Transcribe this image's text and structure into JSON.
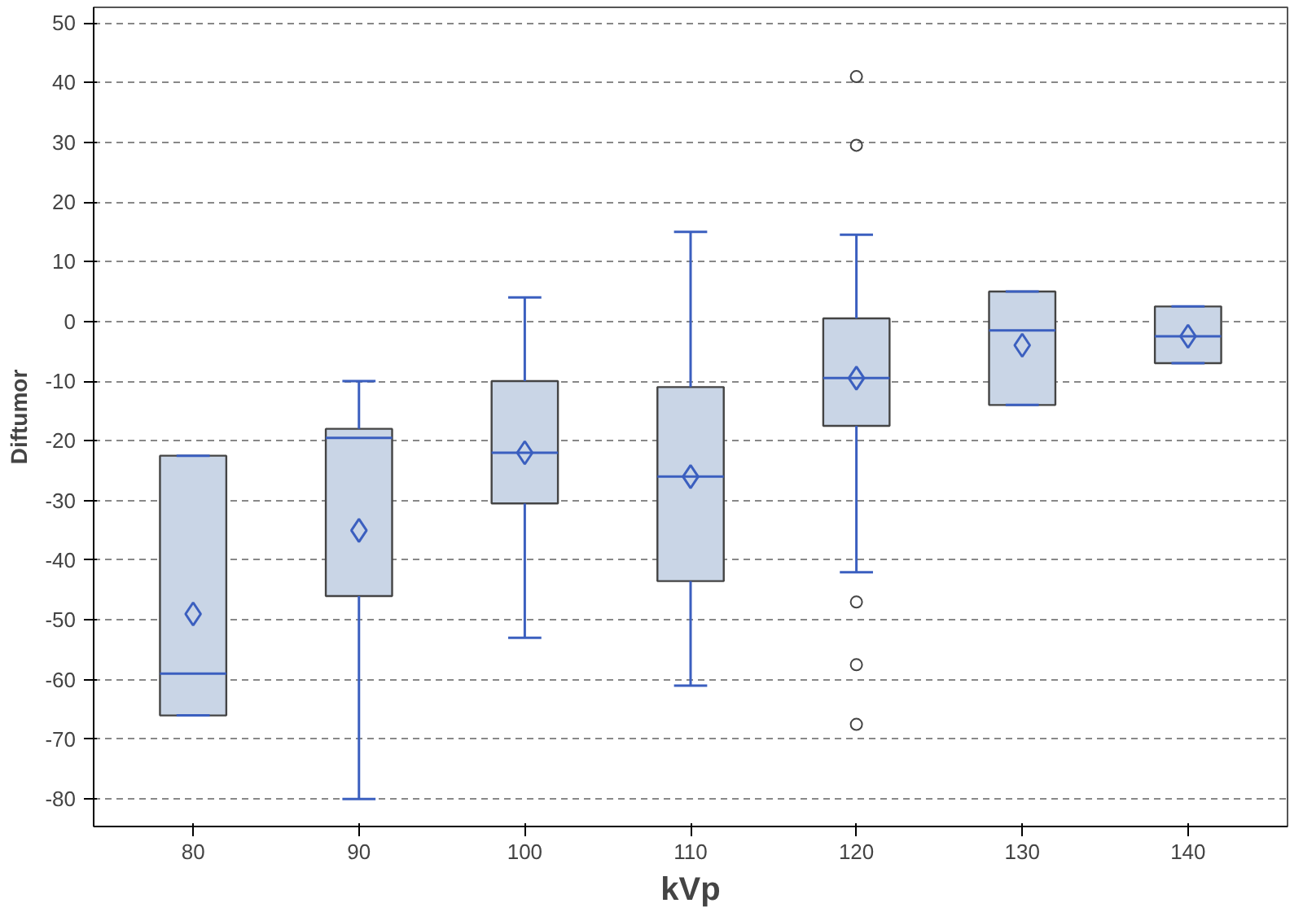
{
  "chart_data": {
    "type": "box",
    "xlabel": "kVp",
    "ylabel": "Diftumor",
    "categories": [
      "80",
      "90",
      "100",
      "110",
      "120",
      "130",
      "140"
    ],
    "series": [
      {
        "color": "#c9d5e6",
        "boxes": [
          {
            "low": -66,
            "q1": -66,
            "median": -59,
            "q3": -22.5,
            "high": -22.5,
            "mean": -49
          },
          {
            "low": -80,
            "q1": -46,
            "median": -19.5,
            "q3": -18,
            "high": -10,
            "mean": -35
          },
          {
            "low": -53,
            "q1": -30.5,
            "median": -22,
            "q3": -10,
            "high": 4,
            "mean": -22
          },
          {
            "low": -61,
            "q1": -43.5,
            "median": -26,
            "q3": -11,
            "high": 15,
            "mean": -26
          },
          {
            "low": -42,
            "q1": -17.5,
            "median": -9.5,
            "q3": 0.5,
            "high": 14.5,
            "mean": -9.5,
            "outliers": [
              41,
              29.5,
              -47,
              -57.5,
              -67.5
            ]
          },
          {
            "low": -14,
            "q1": -14,
            "median": -1.5,
            "q3": 5,
            "high": 5,
            "mean": -4
          },
          {
            "low": -7,
            "q1": -7,
            "median": -2.5,
            "q3": 2.5,
            "high": 2.5,
            "mean": -2.5
          }
        ]
      }
    ],
    "ylim": [
      -84.6,
      52.6
    ],
    "yticks": [
      -80,
      -70,
      -60,
      -50,
      -40,
      -30,
      -20,
      -10,
      0,
      10,
      20,
      30,
      40,
      50
    ],
    "grid": "y",
    "marker": "diamond"
  }
}
